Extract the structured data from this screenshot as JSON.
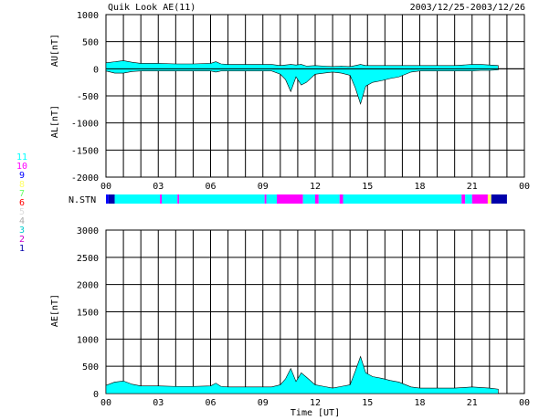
{
  "header": {
    "title": "Quik Look AE(11)",
    "date_range": "2003/12/25-2003/12/26"
  },
  "station_legend": {
    "levels": [
      {
        "label": "11",
        "color": "#00ffff"
      },
      {
        "label": "10",
        "color": "#ff00ff"
      },
      {
        "label": "9",
        "color": "#0000ff"
      },
      {
        "label": "8",
        "color": "#ffff66"
      },
      {
        "label": "7",
        "color": "#66ff66"
      },
      {
        "label": "6",
        "color": "#ff0000"
      },
      {
        "label": "5",
        "color": "#dddddd"
      },
      {
        "label": "4",
        "color": "#aaaaaa"
      },
      {
        "label": "3",
        "color": "#00cccc"
      },
      {
        "label": "2",
        "color": "#cc00cc"
      },
      {
        "label": "1",
        "color": "#0000aa"
      }
    ]
  },
  "chart_data": [
    {
      "type": "area",
      "ylabel_top": "AU[nT]",
      "ylabel_bottom": "AL[nT]",
      "ylim": [
        -2000,
        1000
      ],
      "yticks": [
        "1000",
        "500",
        "0",
        "-500",
        "-1000",
        "-1500",
        "-2000"
      ],
      "yticks_values": [
        1000,
        500,
        0,
        -500,
        -1000,
        -1500,
        -2000
      ],
      "xlim": [
        0,
        24
      ],
      "xticks": [
        "00",
        "03",
        "06",
        "09",
        "12",
        "15",
        "18",
        "21",
        "00"
      ],
      "grid": true,
      "series": [
        {
          "x": [
            0,
            0.5,
            1,
            1.5,
            2,
            3,
            4,
            5,
            6,
            6.3,
            6.6,
            7,
            8,
            9,
            9.5,
            10,
            10.3,
            10.6,
            10.9,
            11.2,
            11.5,
            12,
            12.5,
            13,
            13.5,
            14,
            14.3,
            14.6,
            14.9,
            15.3,
            15.8,
            16.3,
            16.8,
            17.5,
            18,
            19,
            20,
            21,
            21.5,
            22,
            22.5
          ],
          "au": [
            110,
            130,
            150,
            120,
            100,
            100,
            90,
            90,
            100,
            130,
            90,
            80,
            80,
            80,
            80,
            60,
            70,
            80,
            70,
            80,
            50,
            60,
            50,
            40,
            50,
            40,
            60,
            80,
            60,
            60,
            60,
            60,
            60,
            60,
            60,
            60,
            60,
            80,
            80,
            70,
            60
          ],
          "al": [
            -40,
            -80,
            -80,
            -50,
            -40,
            -40,
            -40,
            -40,
            -40,
            -60,
            -40,
            -40,
            -40,
            -40,
            -40,
            -100,
            -200,
            -420,
            -150,
            -300,
            -250,
            -100,
            -80,
            -60,
            -80,
            -120,
            -350,
            -650,
            -320,
            -250,
            -220,
            -180,
            -150,
            -60,
            -40,
            -40,
            -40,
            -40,
            -30,
            -30,
            -20
          ]
        }
      ]
    },
    {
      "type": "area",
      "ylabel": "AE[nT]",
      "xlabel": "Time [UT]",
      "ylim": [
        0,
        3000
      ],
      "yticks": [
        "3000",
        "2500",
        "2000",
        "1500",
        "1000",
        "500",
        "0"
      ],
      "yticks_values": [
        3000,
        2500,
        2000,
        1500,
        1000,
        500,
        0
      ],
      "xlim": [
        0,
        24
      ],
      "xticks": [
        "00",
        "03",
        "06",
        "09",
        "12",
        "15",
        "18",
        "21",
        "00"
      ],
      "grid": true,
      "series": [
        {
          "x": [
            0,
            0.5,
            1,
            1.5,
            2,
            3,
            4,
            5,
            6,
            6.3,
            6.6,
            7,
            8,
            9,
            9.5,
            10,
            10.3,
            10.6,
            10.9,
            11.2,
            11.5,
            12,
            12.5,
            13,
            13.5,
            14,
            14.3,
            14.6,
            14.9,
            15.3,
            15.8,
            16.3,
            16.8,
            17.5,
            18,
            19,
            20,
            21,
            21.5,
            22,
            22.5
          ],
          "values": [
            150,
            210,
            230,
            170,
            140,
            140,
            130,
            130,
            140,
            190,
            130,
            120,
            120,
            120,
            120,
            160,
            270,
            460,
            220,
            380,
            300,
            160,
            130,
            100,
            130,
            160,
            410,
            680,
            380,
            310,
            280,
            240,
            210,
            120,
            100,
            100,
            100,
            120,
            110,
            100,
            80
          ]
        }
      ]
    },
    {
      "type": "table",
      "label": "N.STN",
      "xlim": [
        0,
        24
      ],
      "segments": [
        {
          "from": 0,
          "to": 0.15,
          "level": "9"
        },
        {
          "from": 0.15,
          "to": 0.5,
          "level": "1"
        },
        {
          "from": 0.5,
          "to": 3.1,
          "level": "11"
        },
        {
          "from": 3.1,
          "to": 3.2,
          "level": "10"
        },
        {
          "from": 3.2,
          "to": 4.1,
          "level": "11"
        },
        {
          "from": 4.1,
          "to": 4.2,
          "level": "10"
        },
        {
          "from": 4.2,
          "to": 9.1,
          "level": "11"
        },
        {
          "from": 9.1,
          "to": 9.2,
          "level": "10"
        },
        {
          "from": 9.2,
          "to": 9.8,
          "level": "11"
        },
        {
          "from": 9.8,
          "to": 11.3,
          "level": "10"
        },
        {
          "from": 11.3,
          "to": 12.0,
          "level": "11"
        },
        {
          "from": 12.0,
          "to": 12.2,
          "level": "10"
        },
        {
          "from": 12.2,
          "to": 13.4,
          "level": "11"
        },
        {
          "from": 13.4,
          "to": 13.6,
          "level": "10"
        },
        {
          "from": 13.6,
          "to": 20.4,
          "level": "11"
        },
        {
          "from": 20.4,
          "to": 20.6,
          "level": "10"
        },
        {
          "from": 20.6,
          "to": 21.0,
          "level": "11"
        },
        {
          "from": 21.0,
          "to": 21.9,
          "level": "10"
        },
        {
          "from": 21.9,
          "to": 22.1,
          "level": "8"
        },
        {
          "from": 22.1,
          "to": 23.0,
          "level": "1"
        }
      ]
    }
  ],
  "colors": {
    "fill": "#00ffff",
    "disturbed": "#ff00ff",
    "line": "#000000",
    "grid": "#000000"
  }
}
